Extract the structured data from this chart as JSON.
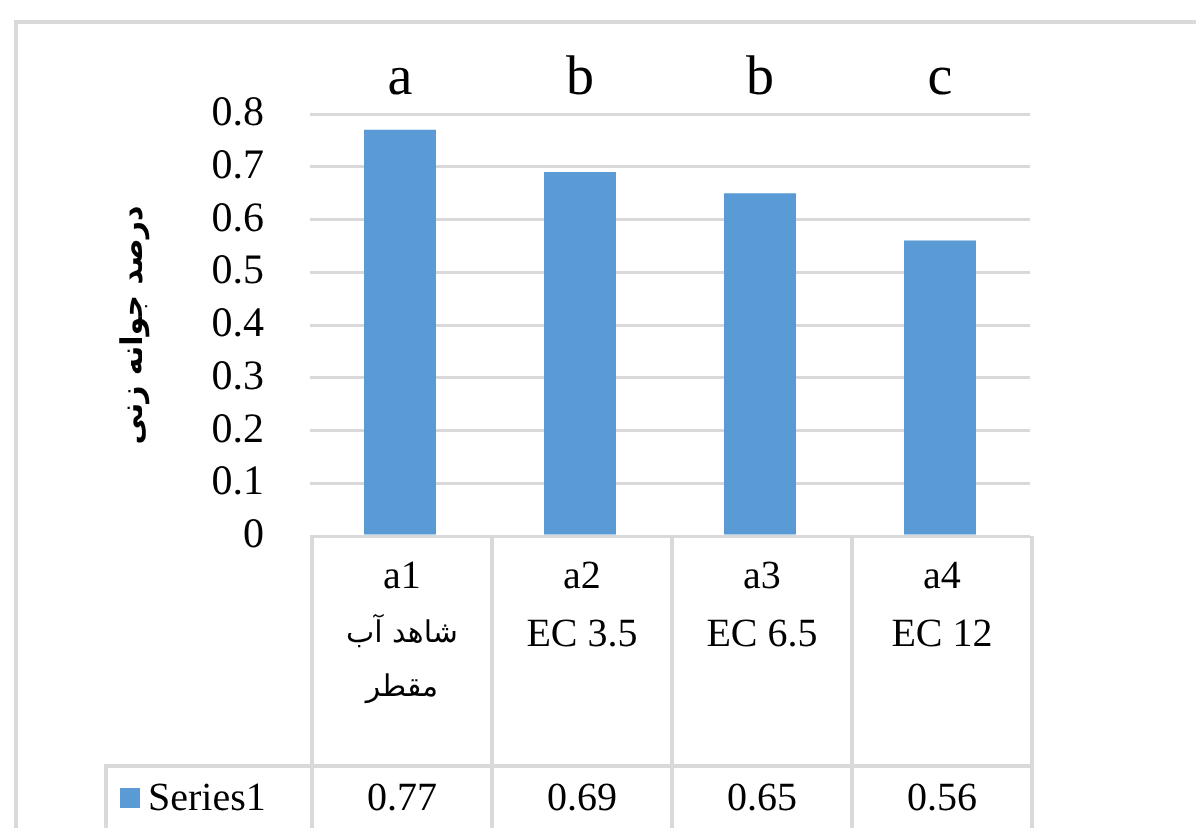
{
  "chart_data": {
    "type": "bar",
    "categories": [
      "a1\nشاهد آب مقطر",
      "a2\nEC 3.5",
      "a3\nEC 6.5",
      "a4\nEC 12"
    ],
    "series": [
      {
        "name": "Series1",
        "color": "#5b9bd5",
        "values": [
          0.77,
          0.69,
          0.65,
          0.56
        ]
      }
    ],
    "ylabel": "درصد جوانه زنی",
    "ylim": [
      0,
      0.8
    ],
    "yticks": [
      0,
      0.1,
      0.2,
      0.3,
      0.4,
      0.5,
      0.6,
      0.7,
      0.8
    ],
    "grid": "y",
    "legend": "bottom",
    "data_labels": true,
    "annotations": [
      "a",
      "b",
      "b",
      "c"
    ]
  }
}
